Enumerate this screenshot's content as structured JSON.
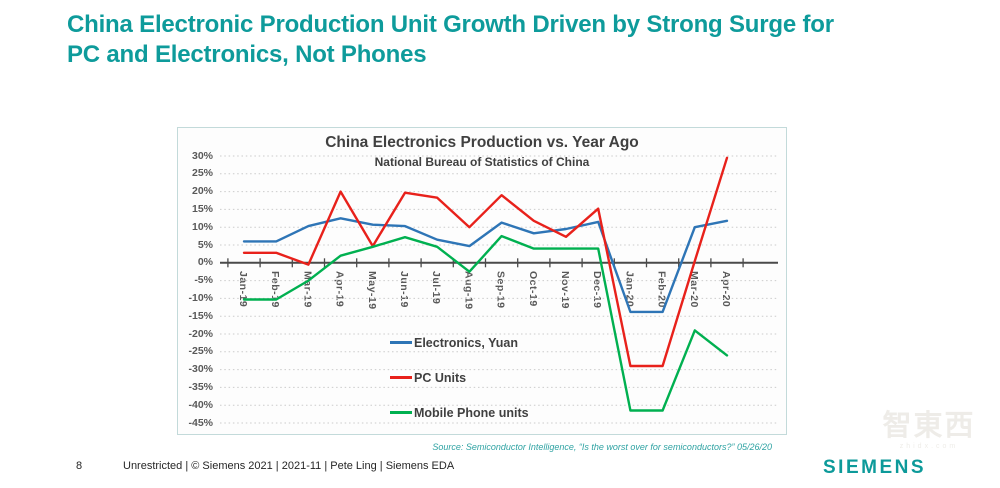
{
  "slide": {
    "title_lines": [
      "China Electronic Production Unit Growth Driven by Strong Surge for",
      "PC and Electronics, Not Phones"
    ],
    "accent_color": "#0e9b9b"
  },
  "source_note": "Source: Semiconductor Intelligence, “Is the worst over for semiconductors?” 05/26/20",
  "footer": {
    "page_number": "8",
    "classification": "Unrestricted | © Siemens 2021 | 2021-11 | Pete Ling | Siemens EDA"
  },
  "brand": {
    "logo_text": "SIEMENS",
    "logo_color": "#0d9a9a"
  },
  "watermark": {
    "chars": "智東西",
    "subtext": "zhidx.com"
  },
  "chart_data": {
    "type": "line",
    "title": "China Electronics Production vs. Year Ago",
    "subtitle": "National Bureau of Statistics of China",
    "categories": [
      "Jan-19",
      "Feb-19",
      "Mar-19",
      "Apr-19",
      "May-19",
      "Jun-19",
      "Jul-19",
      "Aug-19",
      "Sep-19",
      "Oct-19",
      "Nov-19",
      "Dec-19",
      "Jan-20",
      "Feb-20",
      "Mar-20",
      "Apr-20"
    ],
    "series": [
      {
        "name": "Electronics, Yuan",
        "color": "#2e75b6",
        "values": [
          6,
          6,
          10.3,
          12.5,
          10.7,
          10.3,
          6.5,
          4.7,
          11.3,
          8.3,
          9.5,
          11.5,
          -13.8,
          -13.8,
          10,
          11.8
        ]
      },
      {
        "name": "PC Units",
        "color": "#e8211b",
        "values": [
          2.8,
          2.8,
          -0.5,
          20,
          4.7,
          19.7,
          18.3,
          10,
          19,
          11.8,
          7.3,
          15.2,
          -29,
          -29,
          0.5,
          29.5
        ]
      },
      {
        "name": "Mobile Phone units",
        "color": "#00b050",
        "values": [
          -10.3,
          -10.3,
          -5,
          2,
          4.5,
          7.2,
          4.5,
          -2.5,
          7.5,
          4,
          4,
          4,
          -41.5,
          -41.5,
          -19,
          -26
        ]
      }
    ],
    "ylabel": "",
    "xlabel": "",
    "ylim": [
      -45,
      30
    ],
    "ytick_step": 5,
    "ytick_format": "percent",
    "grid": "horizontal-dotted",
    "legend_position": "inside-bottom-center",
    "axis_color": "#4a4a4a",
    "grid_color": "#cbcbcb",
    "tick_label_color": "#595959"
  }
}
